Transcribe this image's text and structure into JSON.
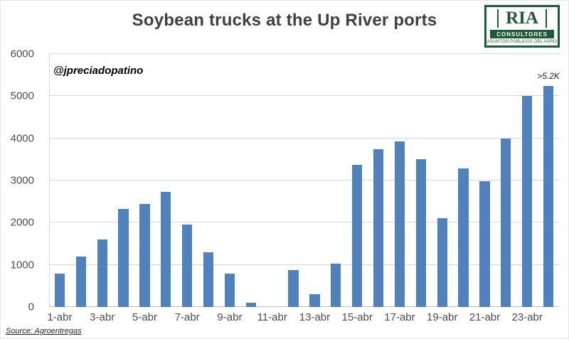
{
  "title": "Soybean trucks at the Up River ports",
  "watermark": "@jpreciadopatino",
  "source": "Source: Agroentregas",
  "logo": {
    "brand": "RIA",
    "strip": "CONSULTORES",
    "tagline": "ASUNTOS PÚBLICOS DEL AGRO"
  },
  "colors": {
    "bar": "#4F81BD",
    "grid": "#D9D9D9",
    "zero_axis": "#BFBFBF",
    "axis_text": "#4D4D4D",
    "title_text": "#404040",
    "logo_green": "#1D5A35"
  },
  "chart_data": {
    "type": "bar",
    "title": "Soybean trucks at the Up River ports",
    "xlabel": "",
    "ylabel": "",
    "categories": [
      "1-abr",
      "2-abr",
      "3-abr",
      "4-abr",
      "5-abr",
      "6-abr",
      "7-abr",
      "8-abr",
      "9-abr",
      "10-abr",
      "11-abr",
      "12-abr",
      "13-abr",
      "14-abr",
      "15-abr",
      "16-abr",
      "17-abr",
      "18-abr",
      "19-abr",
      "20-abr",
      "21-abr",
      "22-abr",
      "23-abr",
      "24-abr"
    ],
    "values": [
      800,
      1200,
      1600,
      2330,
      2450,
      2730,
      1950,
      1300,
      800,
      100,
      0,
      880,
      300,
      1030,
      3370,
      3750,
      3930,
      3500,
      2100,
      3290,
      2980,
      4000,
      5000,
      5240
    ],
    "x_tick_labels": [
      "1-abr",
      "3-abr",
      "5-abr",
      "7-abr",
      "9-abr",
      "11-abr",
      "13-abr",
      "15-abr",
      "17-abr",
      "19-abr",
      "21-abr",
      "23-abr"
    ],
    "y_ticks": [
      0,
      1000,
      2000,
      3000,
      4000,
      5000,
      6000
    ],
    "ylim": [
      0,
      6000
    ],
    "grid": true,
    "legend": "none",
    "annotation": {
      "text": ">5.2K",
      "category": "24-abr"
    }
  }
}
